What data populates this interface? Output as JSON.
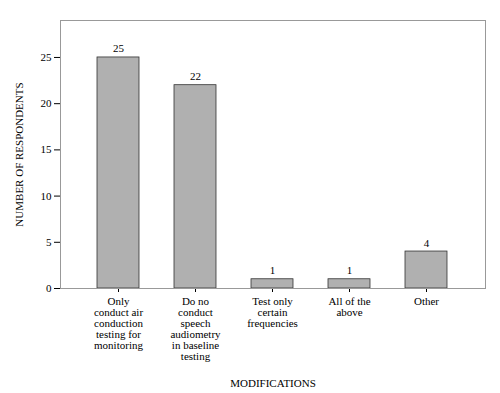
{
  "chart_data": {
    "type": "bar",
    "categories": [
      "Only\nconduct air\nconduction\ntesting for\nmonitoring",
      "Do no\nconduct\nspeech\naudiometry\nin baseline\ntesting",
      "Test only\ncertain\nfrequencies",
      "All of the\nabove",
      "Other"
    ],
    "values": [
      25,
      22,
      1,
      1,
      4
    ],
    "color": "#b0b0b0",
    "xlabel": "MODIFICATIONS",
    "ylabel": "NUMBER OF RESPONDENTS",
    "ylim": [
      0,
      29
    ],
    "yticks": [
      0,
      5,
      10,
      15,
      20,
      25
    ],
    "data_labels": true
  }
}
